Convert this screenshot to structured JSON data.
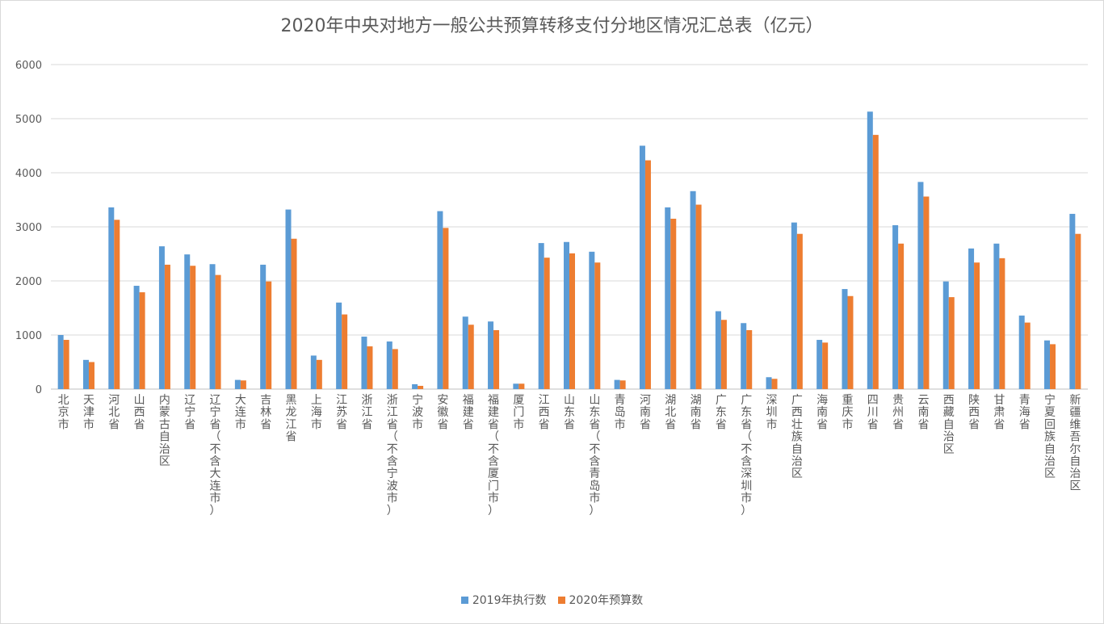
{
  "chart_data": {
    "type": "bar",
    "title": "2020年中央对地方一般公共预算转移支付分地区情况汇总表（亿元）",
    "xlabel": "",
    "ylabel": "",
    "ylim": [
      0,
      6000
    ],
    "yticks": [
      0,
      1000,
      2000,
      3000,
      4000,
      5000,
      6000
    ],
    "grid": true,
    "legend_position": "bottom",
    "categories": [
      "北京市",
      "天津市",
      "河北省",
      "山西省",
      "内蒙古自治区",
      "辽宁省",
      "辽宁省（不含大连市）",
      "大连市",
      "吉林省",
      "黑龙江省",
      "上海市",
      "江苏省",
      "浙江省",
      "浙江省（不含宁波市）",
      "宁波市",
      "安徽省",
      "福建省",
      "福建省（不含厦门市）",
      "厦门市",
      "江西省",
      "山东省",
      "山东省（不含青岛市）",
      "青岛市",
      "河南省",
      "湖北省",
      "湖南省",
      "广东省",
      "广东省（不含深圳市）",
      "深圳市",
      "广西壮族自治区",
      "海南省",
      "重庆市",
      "四川省",
      "贵州省",
      "云南省",
      "西藏自治区",
      "陕西省",
      "甘肃省",
      "青海省",
      "宁夏回族自治区",
      "新疆维吾尔自治区"
    ],
    "series": [
      {
        "name": "2019年执行数",
        "color": "#5b9bd5",
        "values": [
          1000,
          540,
          3360,
          1910,
          2640,
          2490,
          2310,
          170,
          2300,
          3320,
          620,
          1600,
          970,
          880,
          90,
          3290,
          1340,
          1250,
          100,
          2700,
          2720,
          2540,
          170,
          4500,
          3360,
          3660,
          1440,
          1220,
          220,
          3080,
          910,
          1850,
          5130,
          3030,
          3830,
          1990,
          2600,
          2690,
          1360,
          900,
          3240
        ]
      },
      {
        "name": "2020年预算数",
        "color": "#ed7d31",
        "values": [
          910,
          500,
          3130,
          1790,
          2300,
          2280,
          2110,
          160,
          1990,
          2780,
          540,
          1380,
          790,
          740,
          60,
          2980,
          1190,
          1090,
          100,
          2430,
          2510,
          2340,
          160,
          4230,
          3150,
          3410,
          1280,
          1090,
          190,
          2870,
          860,
          1720,
          4700,
          2690,
          3560,
          1700,
          2340,
          2420,
          1230,
          830,
          2870
        ]
      }
    ]
  }
}
